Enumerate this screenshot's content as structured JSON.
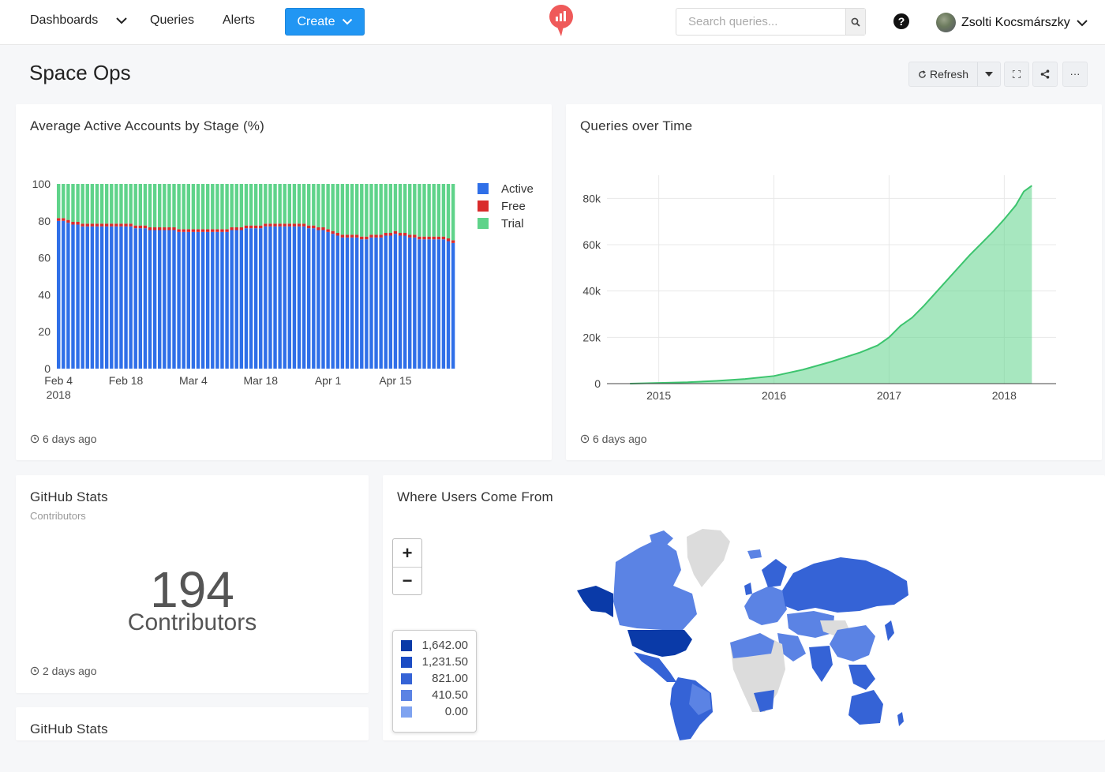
{
  "nav": {
    "dashboards": "Dashboards",
    "queries": "Queries",
    "alerts": "Alerts",
    "create": "Create"
  },
  "search": {
    "placeholder": "Search queries..."
  },
  "user": {
    "name": "Zsolti Kocsmárszky"
  },
  "dashboard": {
    "title": "Space Ops",
    "refresh_label": "Refresh"
  },
  "widgets": {
    "accounts": {
      "title": "Average Active Accounts by Stage (%)",
      "updated": "6 days ago"
    },
    "queries": {
      "title": "Queries over Time",
      "updated": "6 days ago"
    },
    "github": {
      "title": "GitHub Stats",
      "subtitle": "Contributors",
      "value": "194",
      "label": "Contributors",
      "updated": "2 days ago"
    },
    "github2": {
      "title": "GitHub Stats"
    },
    "map": {
      "title": "Where Users Come From",
      "zoom_in": "+",
      "zoom_out": "−"
    }
  },
  "map_legend": [
    {
      "value": "1,642.00",
      "color": "#0a3aa8"
    },
    {
      "value": "1,231.50",
      "color": "#1c4cc4"
    },
    {
      "value": "821.00",
      "color": "#3563d6"
    },
    {
      "value": "410.50",
      "color": "#5b83e4"
    },
    {
      "value": "0.00",
      "color": "#7fa3f0"
    }
  ],
  "chart_data": [
    {
      "type": "bar",
      "stacked": true,
      "title": "Average Active Accounts by Stage (%)",
      "ylim": [
        0,
        100
      ],
      "yticks": [
        0,
        20,
        40,
        60,
        80,
        100
      ],
      "xticks": [
        {
          "label": "Feb 4",
          "sub": "2018",
          "index": 0
        },
        {
          "label": "Feb 18",
          "sub": "",
          "index": 14
        },
        {
          "label": "Mar 4",
          "sub": "",
          "index": 28
        },
        {
          "label": "Mar 18",
          "sub": "",
          "index": 42
        },
        {
          "label": "Apr 1",
          "sub": "",
          "index": 56
        },
        {
          "label": "Apr 15",
          "sub": "",
          "index": 70
        }
      ],
      "legend": [
        {
          "name": "Active",
          "color": "#2f6fe8"
        },
        {
          "name": "Free",
          "color": "#d92b2b"
        },
        {
          "name": "Trial",
          "color": "#5fd38a"
        }
      ],
      "series": [
        {
          "name": "Active",
          "values": [
            80,
            80,
            79,
            78,
            78,
            77,
            77,
            77,
            77,
            77,
            77,
            77,
            77,
            77,
            77,
            77,
            76,
            76,
            76,
            75,
            75,
            75,
            75,
            75,
            75,
            74,
            74,
            74,
            74,
            74,
            74,
            74,
            74,
            74,
            74,
            74,
            75,
            75,
            75,
            76,
            76,
            76,
            76,
            77,
            77,
            77,
            77,
            77,
            77,
            77,
            77,
            77,
            76,
            76,
            75,
            75,
            74,
            73,
            72,
            71,
            71,
            71,
            71,
            70,
            70,
            71,
            71,
            71,
            72,
            72,
            73,
            72,
            72,
            71,
            71,
            70,
            70,
            70,
            70,
            70,
            70,
            69,
            68
          ]
        },
        {
          "name": "Free",
          "values": [
            1.5,
            1.5,
            1.5,
            1.5,
            1.5,
            1.5,
            1.5,
            1.5,
            1.5,
            1.5,
            1.5,
            1.5,
            1.5,
            1.5,
            1.5,
            1.5,
            1.5,
            1.5,
            1.5,
            1.5,
            1.5,
            1.5,
            1.5,
            1.5,
            1.5,
            1.5,
            1.5,
            1.5,
            1.5,
            1.5,
            1.5,
            1.5,
            1.5,
            1.5,
            1.5,
            1.5,
            1.5,
            1.5,
            1.5,
            1.5,
            1.5,
            1.5,
            1.5,
            1.5,
            1.5,
            1.5,
            1.5,
            1.5,
            1.5,
            1.5,
            1.5,
            1.5,
            1.5,
            1.5,
            1.5,
            1.5,
            1.5,
            1.5,
            1.5,
            1.5,
            1.5,
            1.5,
            1.5,
            1.5,
            1.5,
            1.5,
            1.5,
            1.5,
            1.5,
            1.5,
            1.5,
            1.5,
            1.5,
            1.5,
            1.5,
            1.5,
            1.5,
            1.5,
            1.5,
            1.5,
            1.5,
            1.5,
            1.5
          ]
        },
        {
          "name": "Trial",
          "values": []
        }
      ]
    },
    {
      "type": "area",
      "title": "Queries over Time",
      "color": "#5fd38a",
      "xlim": [
        2014.55,
        2018.45
      ],
      "ylim": [
        0,
        90000
      ],
      "yticks": [
        {
          "v": 0,
          "label": "0"
        },
        {
          "v": 20000,
          "label": "20k"
        },
        {
          "v": 40000,
          "label": "40k"
        },
        {
          "v": 60000,
          "label": "60k"
        },
        {
          "v": 80000,
          "label": "80k"
        }
      ],
      "xticks": [
        2015,
        2016,
        2017,
        2018
      ],
      "x": [
        2014.75,
        2015.0,
        2015.25,
        2015.5,
        2015.75,
        2016.0,
        2016.25,
        2016.5,
        2016.75,
        2016.9,
        2017.0,
        2017.1,
        2017.2,
        2017.3,
        2017.4,
        2017.5,
        2017.6,
        2017.7,
        2017.8,
        2017.9,
        2018.0,
        2018.1,
        2018.17,
        2018.24
      ],
      "y": [
        0,
        300,
        600,
        1200,
        2000,
        3300,
        6000,
        9500,
        13500,
        16500,
        20000,
        25000,
        28500,
        33500,
        39000,
        44500,
        50000,
        55500,
        60500,
        65500,
        71000,
        77000,
        83000,
        85500
      ]
    }
  ]
}
